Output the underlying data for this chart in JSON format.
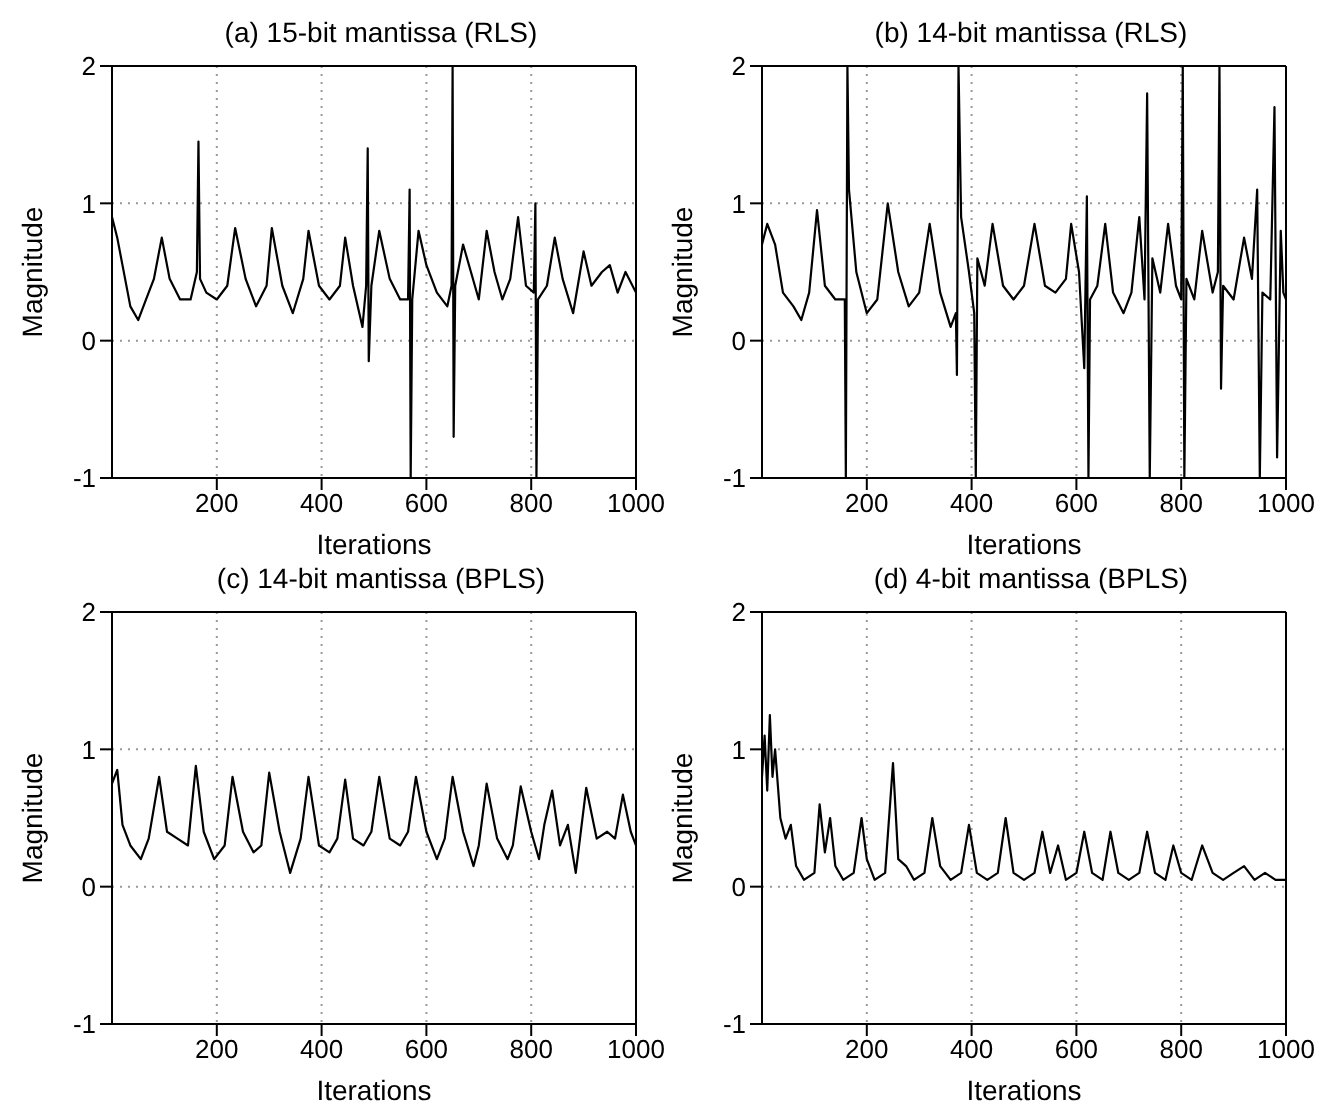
{
  "chart_data": [
    {
      "type": "line",
      "title": "(a) 15-bit mantissa (RLS)",
      "xlabel": "Iterations",
      "ylabel": "Magnitude",
      "xlim": [
        0,
        1000
      ],
      "ylim": [
        -1,
        2
      ],
      "xticks": [
        200,
        400,
        600,
        800,
        1000
      ],
      "yticks": [
        -1,
        0,
        1,
        2
      ],
      "grid": true,
      "legend": false,
      "marker": "none",
      "line_style": "solid",
      "series": [
        {
          "color": "#000000",
          "x": [
            0,
            10,
            20,
            35,
            50,
            65,
            80,
            95,
            110,
            130,
            150,
            162,
            165,
            168,
            180,
            200,
            220,
            235,
            255,
            275,
            295,
            305,
            325,
            345,
            365,
            375,
            395,
            415,
            435,
            445,
            460,
            478,
            485,
            488,
            490,
            495,
            510,
            530,
            550,
            565,
            568,
            570,
            573,
            585,
            600,
            620,
            640,
            648,
            650,
            652,
            655,
            670,
            685,
            700,
            715,
            730,
            745,
            760,
            775,
            790,
            805,
            808,
            810,
            813,
            830,
            845,
            860,
            880,
            900,
            915,
            935,
            950,
            965,
            980,
            1000
          ],
          "values": [
            0.9,
            0.75,
            0.55,
            0.25,
            0.15,
            0.3,
            0.45,
            0.75,
            0.45,
            0.3,
            0.3,
            0.5,
            1.45,
            0.45,
            0.35,
            0.3,
            0.4,
            0.82,
            0.45,
            0.25,
            0.4,
            0.82,
            0.4,
            0.2,
            0.45,
            0.8,
            0.4,
            0.3,
            0.4,
            0.75,
            0.4,
            0.1,
            0.4,
            1.4,
            -0.15,
            0.4,
            0.8,
            0.45,
            0.3,
            0.3,
            1.1,
            -1,
            0.3,
            0.8,
            0.55,
            0.35,
            0.25,
            0.4,
            2,
            -0.7,
            0.4,
            0.7,
            0.5,
            0.3,
            0.8,
            0.5,
            0.3,
            0.45,
            0.9,
            0.4,
            0.35,
            1.0,
            -1,
            0.3,
            0.4,
            0.75,
            0.45,
            0.2,
            0.65,
            0.4,
            0.5,
            0.55,
            0.35,
            0.5,
            0.35
          ]
        }
      ]
    },
    {
      "type": "line",
      "title": "(b) 14-bit mantissa (RLS)",
      "xlabel": "Iterations",
      "ylabel": "Magnitude",
      "xlim": [
        0,
        1000
      ],
      "ylim": [
        -1,
        2
      ],
      "xticks": [
        200,
        400,
        600,
        800,
        1000
      ],
      "yticks": [
        -1,
        0,
        1,
        2
      ],
      "grid": true,
      "legend": false,
      "marker": "none",
      "line_style": "solid",
      "series": [
        {
          "color": "#000000",
          "x": [
            0,
            10,
            25,
            40,
            60,
            75,
            90,
            105,
            120,
            140,
            158,
            160,
            163,
            166,
            180,
            200,
            220,
            240,
            260,
            280,
            300,
            320,
            340,
            360,
            370,
            372,
            375,
            380,
            395,
            405,
            408,
            411,
            425,
            440,
            460,
            480,
            500,
            520,
            540,
            560,
            580,
            590,
            605,
            615,
            620,
            623,
            626,
            640,
            655,
            670,
            690,
            705,
            720,
            730,
            735,
            740,
            745,
            760,
            775,
            790,
            800,
            803,
            806,
            810,
            825,
            840,
            860,
            870,
            873,
            876,
            880,
            900,
            920,
            935,
            945,
            950,
            955,
            970,
            978,
            983,
            990,
            995,
            1000
          ],
          "values": [
            0.7,
            0.85,
            0.7,
            0.35,
            0.25,
            0.15,
            0.35,
            0.95,
            0.4,
            0.3,
            0.3,
            -1,
            2,
            1.1,
            0.5,
            0.2,
            0.3,
            1.0,
            0.5,
            0.25,
            0.35,
            0.85,
            0.35,
            0.1,
            0.2,
            -0.25,
            2,
            0.9,
            0.5,
            0.2,
            -1,
            0.6,
            0.4,
            0.85,
            0.4,
            0.3,
            0.4,
            0.85,
            0.4,
            0.35,
            0.45,
            0.85,
            0.5,
            -0.2,
            1.05,
            -1,
            0.3,
            0.4,
            0.85,
            0.35,
            0.2,
            0.35,
            0.9,
            0.3,
            1.8,
            -1,
            0.6,
            0.35,
            0.85,
            0.4,
            0.3,
            2,
            -1,
            0.45,
            0.3,
            0.8,
            0.35,
            0.5,
            2,
            -0.35,
            0.4,
            0.3,
            0.75,
            0.45,
            1.1,
            -1,
            0.35,
            0.3,
            1.7,
            -0.85,
            0.8,
            0.35,
            0.3
          ]
        }
      ]
    },
    {
      "type": "line",
      "title": "(c) 14-bit mantissa (BPLS)",
      "xlabel": "Iterations",
      "ylabel": "Magnitude",
      "xlim": [
        0,
        1000
      ],
      "ylim": [
        -1,
        2
      ],
      "xticks": [
        200,
        400,
        600,
        800,
        1000
      ],
      "yticks": [
        -1,
        0,
        1,
        2
      ],
      "grid": true,
      "legend": false,
      "marker": "none",
      "line_style": "solid",
      "series": [
        {
          "color": "#000000",
          "x": [
            0,
            10,
            20,
            35,
            55,
            70,
            90,
            105,
            125,
            145,
            160,
            175,
            195,
            215,
            230,
            250,
            270,
            285,
            300,
            320,
            340,
            360,
            375,
            395,
            415,
            430,
            445,
            460,
            480,
            495,
            510,
            530,
            550,
            565,
            580,
            600,
            620,
            635,
            650,
            670,
            690,
            700,
            715,
            735,
            755,
            765,
            780,
            800,
            815,
            825,
            840,
            855,
            870,
            885,
            905,
            925,
            945,
            960,
            975,
            990,
            1000
          ],
          "values": [
            0.75,
            0.85,
            0.45,
            0.3,
            0.2,
            0.35,
            0.8,
            0.4,
            0.35,
            0.3,
            0.88,
            0.4,
            0.2,
            0.3,
            0.8,
            0.4,
            0.25,
            0.3,
            0.83,
            0.4,
            0.1,
            0.35,
            0.8,
            0.3,
            0.25,
            0.35,
            0.78,
            0.35,
            0.3,
            0.4,
            0.8,
            0.35,
            0.3,
            0.4,
            0.8,
            0.4,
            0.2,
            0.35,
            0.8,
            0.4,
            0.15,
            0.3,
            0.75,
            0.35,
            0.2,
            0.3,
            0.73,
            0.4,
            0.2,
            0.45,
            0.7,
            0.3,
            0.45,
            0.1,
            0.72,
            0.35,
            0.4,
            0.35,
            0.67,
            0.4,
            0.3
          ]
        }
      ]
    },
    {
      "type": "line",
      "title": "(d) 4-bit mantissa (BPLS)",
      "xlabel": "Iterations",
      "ylabel": "Magnitude",
      "xlim": [
        0,
        1000
      ],
      "ylim": [
        -1,
        2
      ],
      "xticks": [
        200,
        400,
        600,
        800,
        1000
      ],
      "yticks": [
        -1,
        0,
        1,
        2
      ],
      "grid": true,
      "legend": false,
      "marker": "none",
      "line_style": "solid",
      "series": [
        {
          "color": "#000000",
          "x": [
            0,
            5,
            10,
            15,
            20,
            25,
            35,
            45,
            55,
            65,
            80,
            100,
            110,
            120,
            130,
            140,
            155,
            175,
            190,
            200,
            215,
            235,
            250,
            260,
            275,
            290,
            310,
            325,
            340,
            360,
            380,
            395,
            410,
            430,
            450,
            465,
            480,
            500,
            520,
            535,
            550,
            565,
            580,
            600,
            615,
            630,
            650,
            665,
            680,
            700,
            720,
            735,
            750,
            770,
            785,
            800,
            820,
            840,
            860,
            880,
            900,
            920,
            940,
            960,
            980,
            1000
          ],
          "values": [
            0.8,
            1.1,
            0.7,
            1.25,
            0.8,
            1.0,
            0.5,
            0.35,
            0.45,
            0.15,
            0.05,
            0.1,
            0.6,
            0.25,
            0.5,
            0.15,
            0.05,
            0.1,
            0.5,
            0.2,
            0.05,
            0.1,
            0.9,
            0.2,
            0.15,
            0.05,
            0.1,
            0.5,
            0.15,
            0.05,
            0.1,
            0.45,
            0.1,
            0.05,
            0.1,
            0.5,
            0.1,
            0.05,
            0.1,
            0.4,
            0.1,
            0.3,
            0.05,
            0.1,
            0.4,
            0.1,
            0.05,
            0.4,
            0.1,
            0.05,
            0.1,
            0.4,
            0.1,
            0.05,
            0.3,
            0.1,
            0.05,
            0.3,
            0.1,
            0.05,
            0.1,
            0.15,
            0.05,
            0.1,
            0.05,
            0.05
          ]
        }
      ]
    }
  ]
}
